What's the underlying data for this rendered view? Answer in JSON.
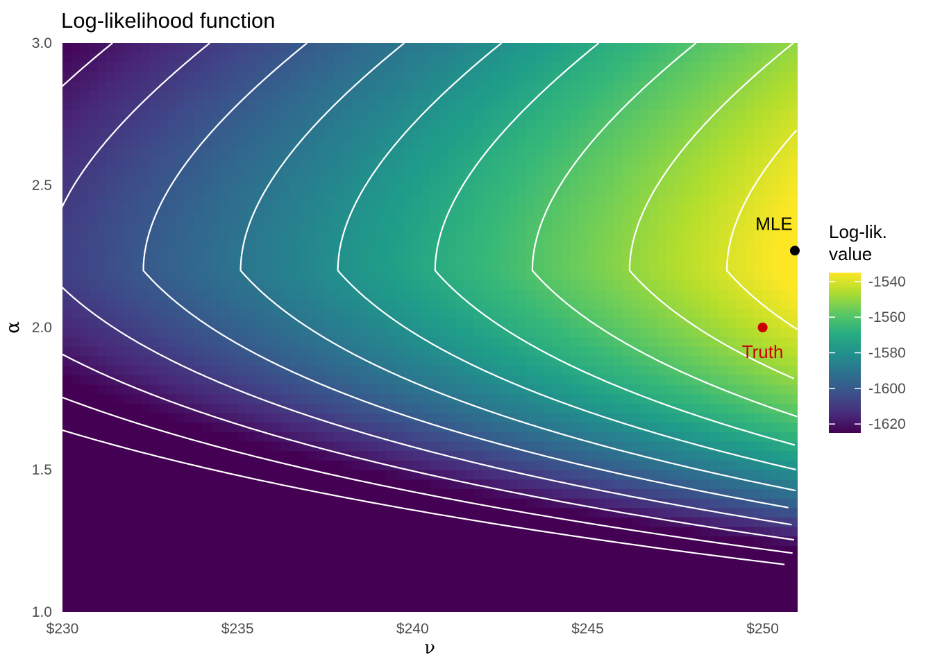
{
  "chart_data": {
    "type": "heatmap",
    "title": "Log-likelihood function",
    "xlabel": "ν",
    "ylabel": "α",
    "xlim": [
      230,
      251
    ],
    "ylim": [
      1.0,
      3.0
    ],
    "x_ticks": [
      {
        "value": 230,
        "label": "$230"
      },
      {
        "value": 235,
        "label": "$235"
      },
      {
        "value": 240,
        "label": "$240"
      },
      {
        "value": 245,
        "label": "$245"
      },
      {
        "value": 250,
        "label": "$250"
      }
    ],
    "y_ticks": [
      {
        "value": 1.0,
        "label": "1.0"
      },
      {
        "value": 1.5,
        "label": "1.5"
      },
      {
        "value": 2.0,
        "label": "2.0"
      },
      {
        "value": 2.5,
        "label": "2.5"
      },
      {
        "value": 3.0,
        "label": "3.0"
      }
    ],
    "fill_scale": {
      "title_lines": [
        "Log-lik.",
        "value"
      ],
      "palette": "viridis",
      "limits": [
        -1625,
        -1535
      ],
      "ticks": [
        {
          "value": -1540,
          "label": "-1540"
        },
        {
          "value": -1560,
          "label": "-1560"
        },
        {
          "value": -1580,
          "label": "-1580"
        },
        {
          "value": -1600,
          "label": "-1600"
        },
        {
          "value": -1620,
          "label": "-1620"
        }
      ]
    },
    "contour_color": "#ffffff",
    "points": [
      {
        "label": "MLE",
        "x": 251.0,
        "y": 2.27,
        "color": "#000000",
        "label_position": "above"
      },
      {
        "label": "Truth",
        "x": 250.0,
        "y": 2.0,
        "color": "#cc0000",
        "label_position": "below"
      }
    ],
    "grid": false,
    "legend_position": "right"
  }
}
